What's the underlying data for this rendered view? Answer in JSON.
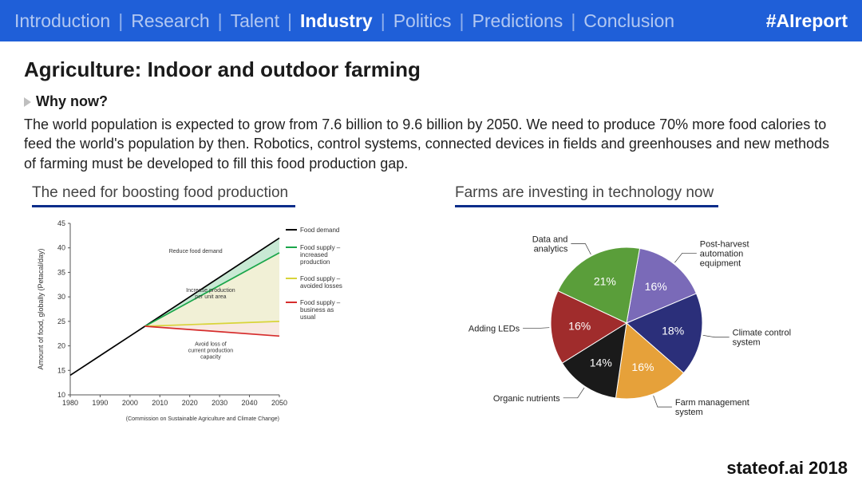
{
  "topbar": {
    "items": [
      "Introduction",
      "Research",
      "Talent",
      "Industry",
      "Politics",
      "Predictions",
      "Conclusion"
    ],
    "active_index": 3,
    "hashtag": "#AIreport",
    "bg_color": "#1f5fd8"
  },
  "page": {
    "title": "Agriculture: Indoor and outdoor farming",
    "subhead": "Why now?",
    "body": "The world population is expected to grow from 7.6 billion to 9.6 billion by 2050. We need to produce 70% more food calories to feed the world's population by then. Robotics, control systems, connected devices in fields and greenhouses and new methods of farming must be developed to fill this food production gap."
  },
  "line_chart": {
    "title": "The need for boosting food production",
    "type": "line",
    "x_ticks": [
      1980,
      1990,
      2000,
      2010,
      2020,
      2030,
      2040,
      2050
    ],
    "y_ticks": [
      10,
      15,
      20,
      25,
      30,
      35,
      40,
      45
    ],
    "y_label": "Amount of food, globally (Petacal/day)",
    "source": "(Commission on Sustainable Agriculture and Climate Change)",
    "xlim": [
      1980,
      2050
    ],
    "ylim": [
      10,
      45
    ],
    "axis_color": "#555555",
    "grid_color": "#e0e0e0",
    "series": {
      "demand": {
        "label": "Food demand",
        "color": "#000000",
        "points": [
          [
            1980,
            14
          ],
          [
            1990,
            18
          ],
          [
            2000,
            22
          ],
          [
            2005,
            24
          ],
          [
            2050,
            42
          ]
        ]
      },
      "increased": {
        "label": "Food supply – increased production",
        "color": "#1aa64a",
        "points": [
          [
            2005,
            24
          ],
          [
            2050,
            39
          ]
        ]
      },
      "avoided": {
        "label": "Food supply – avoided losses",
        "color": "#d8d43a",
        "points": [
          [
            2005,
            24
          ],
          [
            2050,
            25
          ]
        ]
      },
      "business": {
        "label": "Food supply – business as usual",
        "color": "#d62c2c",
        "points": [
          [
            2005,
            24
          ],
          [
            2050,
            22
          ]
        ]
      }
    },
    "fills": [
      {
        "between": [
          "demand",
          "increased"
        ],
        "color": "#b5e2c6"
      },
      {
        "between": [
          "increased",
          "avoided"
        ],
        "color": "#ecebc8"
      },
      {
        "between": [
          "avoided",
          "business"
        ],
        "color": "#f6e2d8"
      }
    ],
    "annotations": [
      {
        "text": "Reduce food demand",
        "x": 2022,
        "y": 39
      },
      {
        "text": "Increase production per unit area",
        "x": 2027,
        "y": 31
      },
      {
        "text": "Avoid loss of current production capacity",
        "x": 2027,
        "y": 20
      }
    ]
  },
  "pie_chart": {
    "title": "Farms are investing in technology now",
    "type": "pie",
    "slices": [
      {
        "label": "Post-harvest automation equipment",
        "pct": 16,
        "color": "#7a6ab8"
      },
      {
        "label": "Climate control system",
        "pct": 18,
        "color": "#2b2f7a"
      },
      {
        "label": "Farm management system",
        "pct": 16,
        "color": "#e6a13a"
      },
      {
        "label": "Organic nutrients",
        "pct": 14,
        "color": "#1a1a1a"
      },
      {
        "label": "Adding LEDs",
        "pct": 16,
        "color": "#a02c2c"
      },
      {
        "label": "Data and analytics",
        "pct": 21,
        "color": "#5a9e3a"
      }
    ],
    "start_angle_deg": -80,
    "radius": 95,
    "label_fontsize": 11,
    "pct_fontsize": 14,
    "pct_color": "#ffffff"
  },
  "footer": "stateof.ai 2018"
}
